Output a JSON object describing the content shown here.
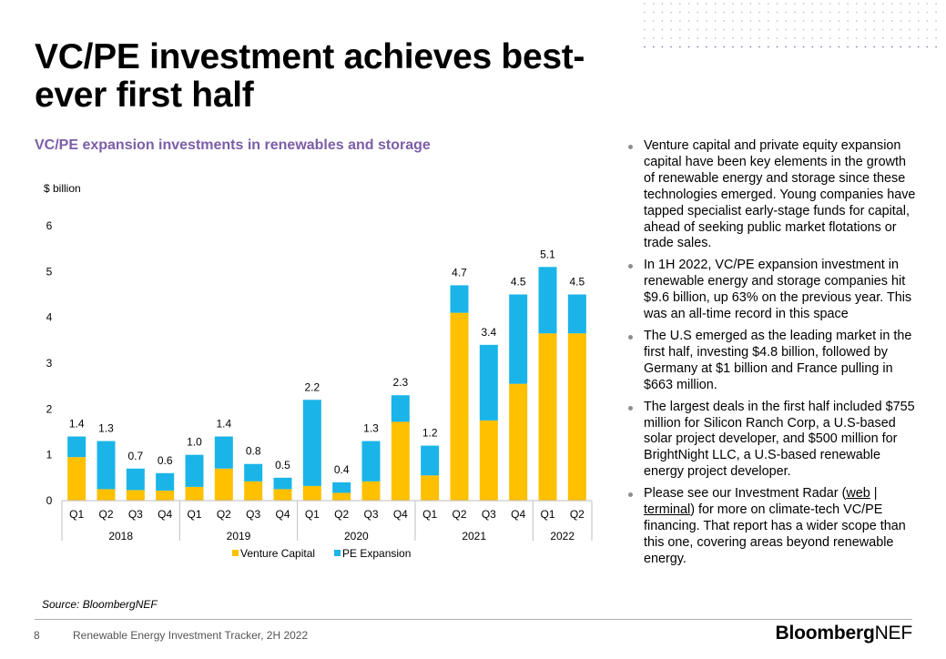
{
  "title": "VC/PE investment achieves best-ever first half",
  "chart_title": "VC/PE expansion investments in renewables and storage",
  "colors": {
    "venture": "#ffc000",
    "pe": "#1ab4e8",
    "title": "#7b5ea7"
  },
  "chart_data": {
    "type": "bar",
    "stacked": true,
    "unit_label": "$ billion",
    "ylim": [
      0,
      6
    ],
    "yticks": [
      0,
      1,
      2,
      3,
      4,
      5,
      6
    ],
    "categories": [
      "Q1",
      "Q2",
      "Q3",
      "Q4",
      "Q1",
      "Q2",
      "Q3",
      "Q4",
      "Q1",
      "Q2",
      "Q3",
      "Q4",
      "Q1",
      "Q2",
      "Q3",
      "Q4",
      "Q1",
      "Q2"
    ],
    "years": [
      {
        "label": "2018",
        "count": 4
      },
      {
        "label": "2019",
        "count": 4
      },
      {
        "label": "2020",
        "count": 4
      },
      {
        "label": "2021",
        "count": 4
      },
      {
        "label": "2022",
        "count": 2
      }
    ],
    "series": [
      {
        "name": "Venture Capital",
        "values": [
          0.95,
          0.25,
          0.23,
          0.22,
          0.3,
          0.7,
          0.42,
          0.25,
          0.32,
          0.17,
          0.42,
          1.72,
          0.55,
          4.1,
          1.75,
          2.55,
          3.65,
          3.65
        ]
      },
      {
        "name": "PE Expansion",
        "values": [
          0.45,
          1.05,
          0.47,
          0.38,
          0.7,
          0.7,
          0.38,
          0.25,
          1.88,
          0.23,
          0.88,
          0.58,
          0.65,
          0.6,
          1.65,
          1.95,
          1.45,
          0.85
        ]
      }
    ],
    "totals": [
      "1.4",
      "1.3",
      "0.7",
      "0.6",
      "1.0",
      "1.4",
      "0.8",
      "0.5",
      "2.2",
      "0.4",
      "1.3",
      "2.3",
      "1.2",
      "4.7",
      "3.4",
      "4.5",
      "5.1",
      "4.5"
    ],
    "legend_position": "bottom"
  },
  "bullets": [
    {
      "text": "Venture capital and private equity expansion capital have been key elements in the growth of renewable energy and storage since these technologies emerged. Young companies have tapped specialist early-stage funds for capital, ahead of seeking public market flotations or trade sales."
    },
    {
      "text": "In 1H 2022, VC/PE expansion investment in renewable energy and storage companies hit $9.6 billion, up 63% on the previous year. This was an all-time record in this space"
    },
    {
      "text": "The U.S emerged as the leading market in the first half, investing $4.8 billion, followed by Germany at $1 billion and France pulling in $663 million."
    },
    {
      "text": "The largest deals in the first half included $755 million for Silicon Ranch Corp, a U.S-based solar project developer, and $500 million for BrightNight LLC, a U.S-based renewable energy project developer."
    }
  ],
  "last_bullet": {
    "before": "Please see our Investment Radar (",
    "link1": "web",
    "sep": " | ",
    "link2": "terminal",
    "after": ") for more on climate-tech VC/PE financing. That report has a wider scope than this one, covering areas beyond renewable energy."
  },
  "source": "Source: BloombergNEF",
  "footer": {
    "page": "8",
    "text": "Renewable Energy Investment Tracker, 2H 2022",
    "brand_bold": "Bloomberg",
    "brand_thin": "NEF"
  }
}
